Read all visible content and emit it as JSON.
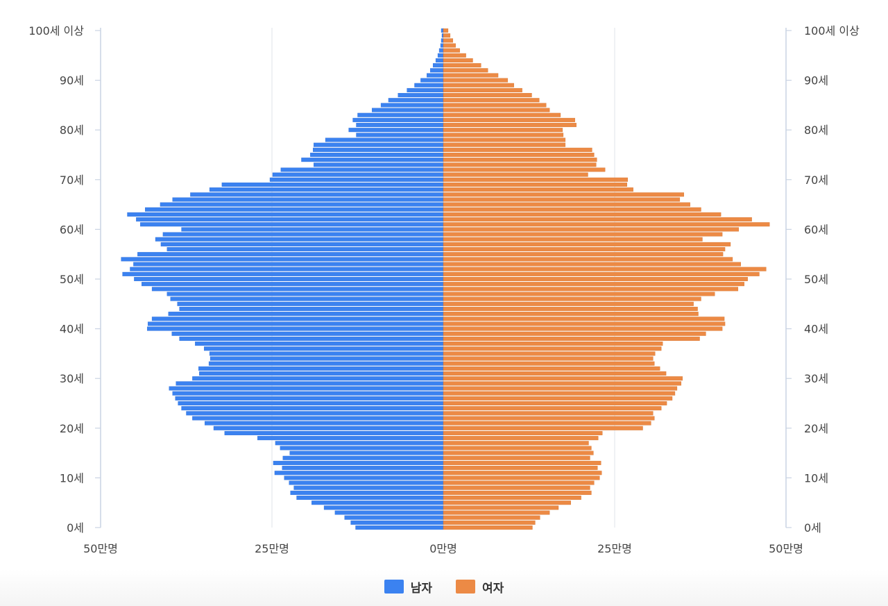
{
  "chart_data": {
    "type": "bar",
    "orientation": "horizontal",
    "subtype": "population-pyramid",
    "x_ticks": [
      "50만명",
      "25만명",
      "0만명",
      "25만명",
      "50만명"
    ],
    "y_ticks": [
      "0세",
      "10세",
      "20세",
      "30세",
      "40세",
      "50세",
      "60세",
      "70세",
      "80세",
      "90세",
      "100세 이상"
    ],
    "xlim": [
      -50,
      50
    ],
    "x_unit": "만명",
    "grid": true,
    "legend_position": "bottom-center",
    "colors": {
      "male": "#3b82f0",
      "female": "#ec8a45",
      "male_edge": "#2f6fd8",
      "female_edge": "#d67733"
    },
    "ages": [
      0,
      1,
      2,
      3,
      4,
      5,
      6,
      7,
      8,
      9,
      10,
      11,
      12,
      13,
      14,
      15,
      16,
      17,
      18,
      19,
      20,
      21,
      22,
      23,
      24,
      25,
      26,
      27,
      28,
      29,
      30,
      31,
      32,
      33,
      34,
      35,
      36,
      37,
      38,
      39,
      40,
      41,
      42,
      43,
      44,
      45,
      46,
      47,
      48,
      49,
      50,
      51,
      52,
      53,
      54,
      55,
      56,
      57,
      58,
      59,
      60,
      61,
      62,
      63,
      64,
      65,
      66,
      67,
      68,
      69,
      70,
      71,
      72,
      73,
      74,
      75,
      76,
      77,
      78,
      79,
      80,
      81,
      82,
      83,
      84,
      85,
      86,
      87,
      88,
      89,
      90,
      91,
      92,
      93,
      94,
      95,
      96,
      97,
      98,
      99,
      "100세 이상"
    ],
    "series": [
      {
        "name": "남자",
        "values": [
          12.8,
          13.5,
          14.4,
          15.8,
          17.4,
          19.2,
          21.4,
          22.3,
          21.8,
          22.5,
          23.2,
          24.6,
          23.5,
          24.8,
          23.4,
          22.4,
          23.8,
          24.5,
          27.1,
          31.9,
          33.5,
          34.8,
          36.6,
          37.5,
          38.2,
          38.7,
          39.1,
          39.5,
          40.0,
          39.0,
          36.6,
          35.6,
          35.7,
          34.2,
          34.0,
          34.1,
          34.9,
          36.2,
          38.5,
          39.6,
          43.2,
          43.1,
          42.5,
          40.1,
          38.5,
          38.8,
          39.8,
          40.3,
          42.5,
          44.0,
          45.1,
          46.8,
          45.7,
          45.2,
          47.0,
          44.6,
          40.3,
          41.2,
          42.0,
          40.9,
          38.2,
          44.2,
          44.8,
          46.1,
          43.5,
          41.3,
          39.5,
          36.9,
          34.1,
          32.3,
          25.3,
          24.9,
          23.7,
          18.9,
          20.7,
          19.4,
          19.0,
          18.9,
          17.2,
          12.7,
          13.8,
          12.7,
          13.2,
          12.5,
          10.4,
          9.1,
          8.0,
          6.6,
          5.3,
          4.2,
          3.3,
          2.4,
          1.9,
          1.5,
          1.1,
          0.8,
          0.6,
          0.4,
          0.3,
          0.2,
          0.3
        ]
      },
      {
        "name": "여자",
        "values": [
          13.0,
          13.4,
          14.1,
          15.5,
          16.8,
          18.6,
          20.1,
          21.6,
          21.4,
          22.0,
          22.8,
          23.1,
          22.5,
          23.0,
          21.4,
          21.9,
          21.6,
          21.2,
          22.6,
          23.2,
          29.1,
          30.3,
          30.8,
          30.6,
          31.8,
          32.6,
          33.4,
          33.8,
          34.1,
          34.7,
          34.9,
          32.5,
          31.6,
          30.8,
          30.6,
          30.9,
          31.8,
          32.0,
          37.4,
          38.3,
          40.7,
          41.1,
          41.0,
          37.2,
          37.1,
          36.5,
          37.6,
          39.6,
          43.0,
          43.9,
          44.4,
          46.1,
          47.1,
          43.4,
          42.2,
          40.8,
          41.1,
          41.9,
          37.8,
          40.7,
          43.1,
          47.6,
          45.0,
          40.5,
          37.6,
          36.0,
          34.5,
          35.1,
          27.7,
          26.8,
          26.9,
          21.1,
          23.6,
          22.3,
          22.4,
          22.0,
          21.7,
          17.8,
          17.8,
          17.5,
          17.4,
          19.4,
          19.2,
          17.1,
          15.5,
          15.0,
          14.0,
          12.9,
          11.5,
          10.3,
          9.4,
          8.0,
          6.5,
          5.5,
          4.3,
          3.3,
          2.4,
          1.8,
          1.4,
          1.0,
          0.7
        ]
      }
    ]
  },
  "legend": [
    {
      "label": "남자",
      "color": "#3b82f0"
    },
    {
      "label": "여자",
      "color": "#ec8a45"
    }
  ]
}
